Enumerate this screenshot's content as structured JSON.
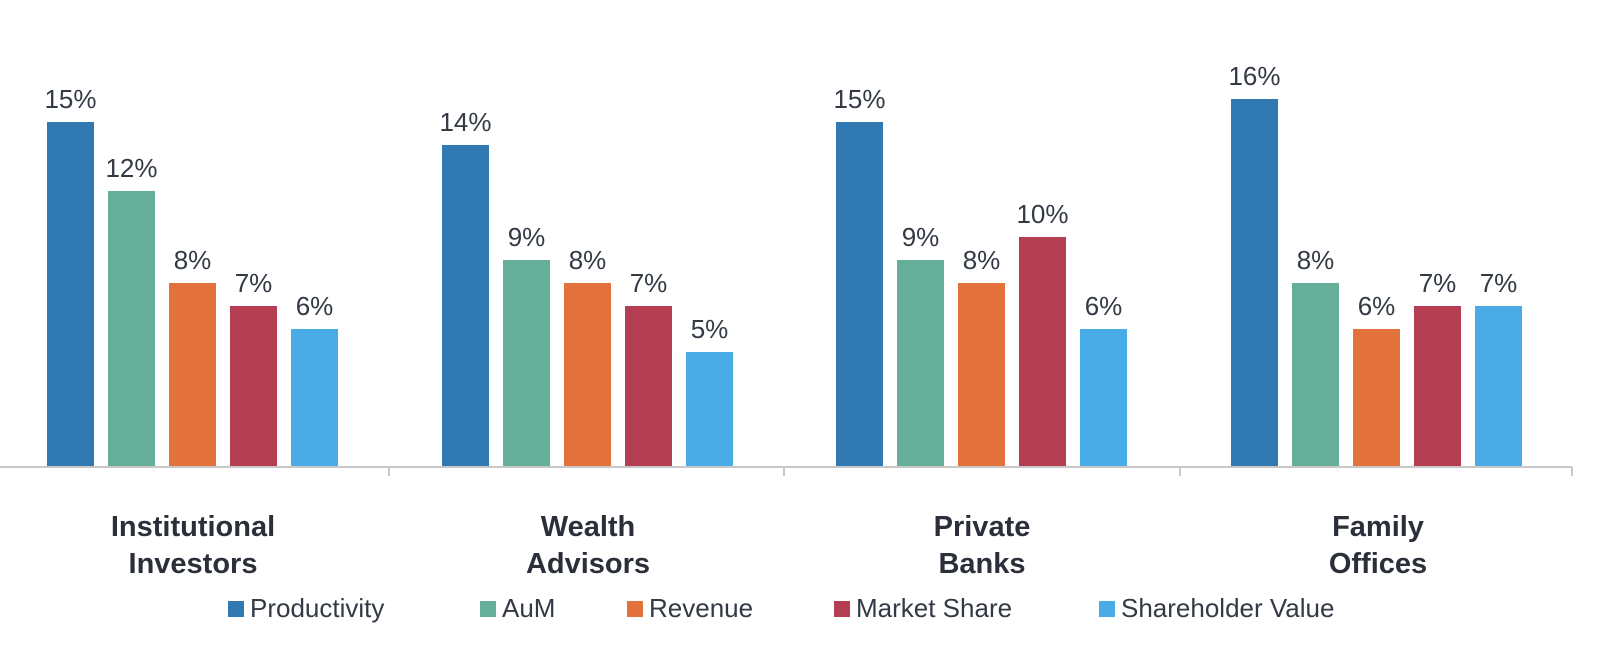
{
  "chart_data": {
    "type": "bar",
    "title": "",
    "xlabel": "",
    "ylabel": "",
    "ylim": [
      0,
      16
    ],
    "grid": false,
    "legend_position": "bottom",
    "categories": [
      [
        "Institutional",
        "Investors"
      ],
      [
        "Wealth",
        "Advisors"
      ],
      [
        "Private",
        "Banks"
      ],
      [
        "Family",
        "Offices"
      ]
    ],
    "series": [
      {
        "name": "Productivity",
        "color": "#3179b2",
        "values": [
          15,
          14,
          15,
          16
        ],
        "labels": [
          "15%",
          "14%",
          "15%",
          "16%"
        ]
      },
      {
        "name": "AuM",
        "color": "#64ae9a",
        "values": [
          12,
          9,
          9,
          8
        ],
        "labels": [
          "12%",
          "9%",
          "9%",
          "8%"
        ]
      },
      {
        "name": "Revenue",
        "color": "#e2713c",
        "values": [
          8,
          8,
          8,
          6
        ],
        "labels": [
          "8%",
          "8%",
          "8%",
          "6%"
        ]
      },
      {
        "name": "Market Share",
        "color": "#b63e52",
        "values": [
          7,
          7,
          10,
          7
        ],
        "labels": [
          "7%",
          "7%",
          "10%",
          "7%"
        ]
      },
      {
        "name": "Shareholder Value",
        "color": "#4aace6",
        "values": [
          6,
          5,
          6,
          7
        ],
        "labels": [
          "6%",
          "5%",
          "6%",
          "7%"
        ]
      }
    ]
  }
}
